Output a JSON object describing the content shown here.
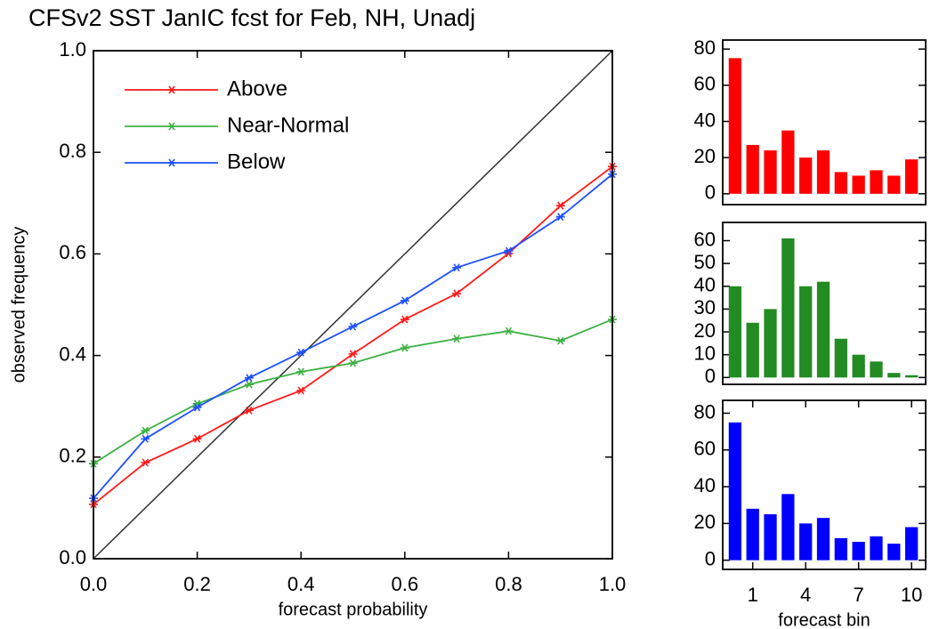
{
  "chart_data": [
    {
      "type": "line",
      "title": "CFSv2 SST JanIC fcst for Feb, NH, Unadj",
      "xlabel": "forecast probability",
      "ylabel": "observed frequency",
      "x": [
        0,
        0.1,
        0.2,
        0.3,
        0.4,
        0.5,
        0.6,
        0.7,
        0.8,
        0.9,
        1.0
      ],
      "series": [
        {
          "name": "Above",
          "color": "#ff1a1a",
          "values": [
            0.107,
            0.189,
            0.236,
            0.292,
            0.331,
            0.403,
            0.471,
            0.522,
            0.601,
            0.695,
            0.772
          ]
        },
        {
          "name": "Near-Normal",
          "color": "#3cb043",
          "values": [
            0.187,
            0.252,
            0.305,
            0.343,
            0.368,
            0.385,
            0.415,
            0.433,
            0.448,
            0.429,
            0.471
          ]
        },
        {
          "name": "Below",
          "color": "#1e4fff",
          "values": [
            0.119,
            0.236,
            0.298,
            0.356,
            0.406,
            0.457,
            0.508,
            0.573,
            0.606,
            0.673,
            0.757
          ]
        }
      ],
      "xlim": [
        0,
        1
      ],
      "ylim": [
        0,
        1
      ],
      "xticks": [
        {
          "value": 0,
          "label": "0.0"
        },
        0.2,
        0.4,
        0.6,
        0.8,
        {
          "value": 1,
          "label": "1.0"
        }
      ],
      "yticks": [
        {
          "value": 0,
          "label": "0.0"
        },
        0.2,
        0.4,
        0.6,
        0.8,
        {
          "value": 1,
          "label": "1.0"
        }
      ],
      "diagonal": true,
      "legend": "upper left"
    },
    {
      "type": "bar",
      "color": "#ff0000",
      "x": [
        0,
        1,
        2,
        3,
        4,
        5,
        6,
        7,
        8,
        9,
        10
      ],
      "values": [
        75,
        27,
        24,
        35,
        20,
        24,
        12,
        10,
        13,
        10,
        19
      ],
      "xlim": [
        -0.7,
        10.8
      ],
      "ylim": [
        -6,
        85
      ],
      "yticks": [
        0,
        20,
        40,
        60,
        80
      ]
    },
    {
      "type": "bar",
      "color": "#228b22",
      "x": [
        0,
        1,
        2,
        3,
        4,
        5,
        6,
        7,
        8,
        9,
        10
      ],
      "values": [
        40,
        24,
        30,
        61,
        40,
        42,
        17,
        10,
        7,
        2,
        1
      ],
      "xlim": [
        -0.7,
        10.8
      ],
      "ylim": [
        -3,
        68
      ],
      "yticks": [
        0,
        10,
        20,
        30,
        40,
        50,
        60
      ]
    },
    {
      "type": "bar",
      "color": "#0000ff",
      "x": [
        0,
        1,
        2,
        3,
        4,
        5,
        6,
        7,
        8,
        9,
        10
      ],
      "values": [
        75,
        28,
        25,
        36,
        20,
        23,
        12,
        10,
        13,
        9,
        18
      ],
      "xlim": [
        -0.7,
        10.8
      ],
      "ylim": [
        -5,
        87
      ],
      "yticks": [
        0,
        20,
        40,
        60,
        80
      ],
      "xticks": [
        1,
        4,
        7,
        10
      ],
      "xlabel": "forecast bin"
    }
  ]
}
